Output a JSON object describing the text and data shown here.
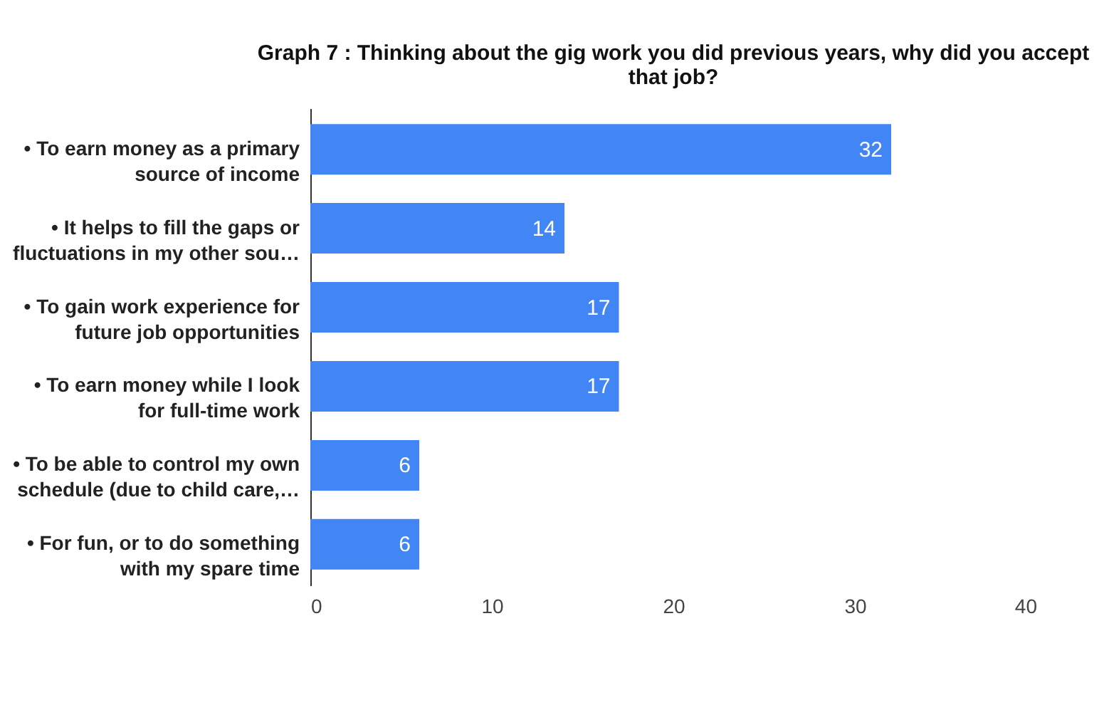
{
  "chart_data": {
    "type": "bar",
    "orientation": "horizontal",
    "title": "Graph 7 : Thinking about the gig work you did previous years, why did you accept\nthat job?",
    "categories": [
      "• To earn money as a primary\nsource of income",
      "• It helps to fill the gaps or\nfluctuations in my other sou…",
      "• To gain work experience for\nfuture job opportunities",
      "• To earn money while I look\nfor full-time work",
      "• To be able to control my own\nschedule (due to child care,…",
      "• For fun, or to do something\nwith my spare time"
    ],
    "values": [
      32,
      14,
      17,
      17,
      6,
      6
    ],
    "color": "#4285f4",
    "xlim": [
      0,
      40
    ],
    "xticks": [
      0,
      10,
      20,
      30,
      40
    ],
    "data_labels": true,
    "grid": false
  }
}
